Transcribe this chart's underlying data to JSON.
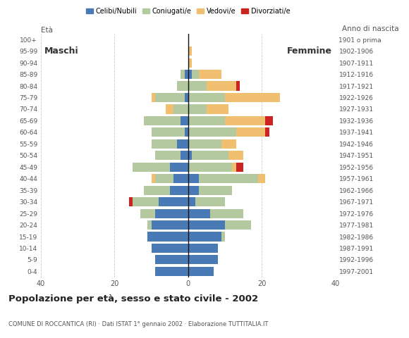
{
  "age_groups": [
    "0-4",
    "5-9",
    "10-14",
    "15-19",
    "20-24",
    "25-29",
    "30-34",
    "35-39",
    "40-44",
    "45-49",
    "50-54",
    "55-59",
    "60-64",
    "65-69",
    "70-74",
    "75-79",
    "80-84",
    "85-89",
    "90-94",
    "95-99",
    "100+"
  ],
  "birth_years": [
    "1997-2001",
    "1992-1996",
    "1987-1991",
    "1982-1986",
    "1977-1981",
    "1972-1976",
    "1967-1971",
    "1962-1966",
    "1957-1961",
    "1952-1956",
    "1947-1951",
    "1942-1946",
    "1937-1941",
    "1932-1936",
    "1927-1931",
    "1922-1926",
    "1917-1921",
    "1912-1916",
    "1907-1911",
    "1902-1906",
    "1901 o prima"
  ],
  "colors": {
    "celibe": "#4a7ab5",
    "coniugato": "#b5c9a0",
    "vedovo": "#f0c070",
    "divorziato": "#cc2222"
  },
  "males": {
    "celibe": [
      9,
      9,
      10,
      11,
      10,
      9,
      8,
      5,
      4,
      5,
      2,
      3,
      1,
      2,
      0,
      1,
      0,
      1,
      0,
      0,
      0
    ],
    "coniugato": [
      0,
      0,
      0,
      0,
      1,
      4,
      7,
      7,
      5,
      10,
      7,
      7,
      9,
      10,
      4,
      8,
      3,
      1,
      0,
      0,
      0
    ],
    "vedovo": [
      0,
      0,
      0,
      0,
      0,
      0,
      0,
      0,
      1,
      0,
      0,
      0,
      0,
      0,
      2,
      1,
      0,
      0,
      0,
      0,
      0
    ],
    "divorziato": [
      0,
      0,
      0,
      0,
      0,
      0,
      1,
      0,
      0,
      0,
      0,
      0,
      0,
      0,
      0,
      0,
      0,
      0,
      0,
      0,
      0
    ]
  },
  "females": {
    "celibe": [
      7,
      8,
      8,
      9,
      10,
      6,
      2,
      3,
      3,
      0,
      1,
      0,
      0,
      0,
      0,
      0,
      0,
      1,
      0,
      0,
      0
    ],
    "coniugato": [
      0,
      0,
      0,
      1,
      7,
      9,
      8,
      9,
      16,
      12,
      10,
      9,
      13,
      10,
      5,
      10,
      5,
      2,
      0,
      0,
      0
    ],
    "vedovo": [
      0,
      0,
      0,
      0,
      0,
      0,
      0,
      0,
      2,
      1,
      4,
      4,
      8,
      11,
      6,
      15,
      8,
      6,
      1,
      1,
      0
    ],
    "divorziato": [
      0,
      0,
      0,
      0,
      0,
      0,
      0,
      0,
      0,
      2,
      0,
      0,
      1,
      2,
      0,
      0,
      1,
      0,
      0,
      0,
      0
    ]
  },
  "title": "Popolazione per età, sesso e stato civile - 2002",
  "subtitle": "COMUNE DI ROCCANTICA (RI) · Dati ISTAT 1° gennaio 2002 · Elaborazione TUTTITALIA.IT",
  "ylabel_left": "Età",
  "ylabel_right": "Anno di nascita",
  "xlabel_left": "Maschi",
  "xlabel_right": "Femmine",
  "xlim": 40,
  "legend_labels": [
    "Celibi/Nubili",
    "Coniugati/e",
    "Vedovi/e",
    "Divorziati/e"
  ],
  "bg_color": "#ffffff",
  "grid_color": "#cccccc"
}
